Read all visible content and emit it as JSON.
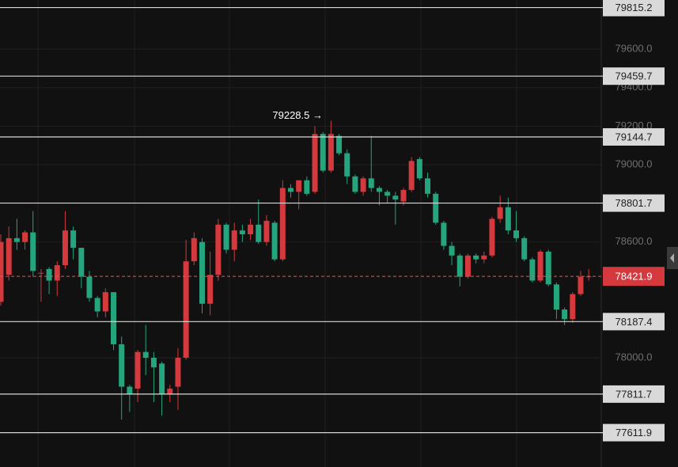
{
  "chart_data": {
    "type": "candlestick",
    "ylim": [
      77433.8,
      79854.4
    ],
    "yticks": [
      {
        "value": 78000,
        "label": "78000.0"
      },
      {
        "value": 78600,
        "label": "78600.0"
      },
      {
        "value": 79000,
        "label": "79000.0"
      },
      {
        "value": 79200,
        "label": "79200.0"
      },
      {
        "value": 79400,
        "label": "79400.0"
      },
      {
        "value": 79600,
        "label": "79600.0"
      }
    ],
    "grid": true,
    "up_color": "#d3393d",
    "down_color": "#24a57d",
    "levels": [
      79815.2,
      79459.7,
      79144.7,
      78801.7,
      78187.4,
      77811.7,
      77611.9
    ],
    "current_price": 78421.9,
    "annotation": {
      "value": 79228.5,
      "label": "79228.5 →"
    },
    "candles": [
      {
        "o": 78290,
        "h": 78640,
        "l": 78270,
        "c": 78600
      },
      {
        "o": 78430,
        "h": 78680,
        "l": 78400,
        "c": 78620
      },
      {
        "o": 78620,
        "h": 78720,
        "l": 78560,
        "c": 78600
      },
      {
        "o": 78600,
        "h": 78660,
        "l": 78560,
        "c": 78650
      },
      {
        "o": 78650,
        "h": 78760,
        "l": 78420,
        "c": 78450
      },
      {
        "o": 78440,
        "h": 78460,
        "l": 78290,
        "c": 78440
      },
      {
        "o": 78460,
        "h": 78470,
        "l": 78330,
        "c": 78400
      },
      {
        "o": 78400,
        "h": 78500,
        "l": 78320,
        "c": 78480
      },
      {
        "o": 78480,
        "h": 78760,
        "l": 78460,
        "c": 78660
      },
      {
        "o": 78660,
        "h": 78680,
        "l": 78510,
        "c": 78570
      },
      {
        "o": 78570,
        "h": 78570,
        "l": 78360,
        "c": 78420
      },
      {
        "o": 78420,
        "h": 78450,
        "l": 78290,
        "c": 78310
      },
      {
        "o": 78310,
        "h": 78320,
        "l": 78210,
        "c": 78240
      },
      {
        "o": 78240,
        "h": 78360,
        "l": 78210,
        "c": 78340
      },
      {
        "o": 78340,
        "h": 78340,
        "l": 78040,
        "c": 78070
      },
      {
        "o": 78070,
        "h": 78110,
        "l": 77680,
        "c": 77850
      },
      {
        "o": 77850,
        "h": 77860,
        "l": 77720,
        "c": 77810
      },
      {
        "o": 77840,
        "h": 78040,
        "l": 77770,
        "c": 78030
      },
      {
        "o": 78030,
        "h": 78170,
        "l": 77910,
        "c": 78000
      },
      {
        "o": 78000,
        "h": 78030,
        "l": 77770,
        "c": 77950
      },
      {
        "o": 77970,
        "h": 77980,
        "l": 77700,
        "c": 77810
      },
      {
        "o": 77810,
        "h": 77860,
        "l": 77770,
        "c": 77840
      },
      {
        "o": 77850,
        "h": 78050,
        "l": 77730,
        "c": 78000
      },
      {
        "o": 78000,
        "h": 78610,
        "l": 77990,
        "c": 78500
      },
      {
        "o": 78500,
        "h": 78650,
        "l": 78480,
        "c": 78620
      },
      {
        "o": 78600,
        "h": 78620,
        "l": 78230,
        "c": 78280
      },
      {
        "o": 78280,
        "h": 78550,
        "l": 78220,
        "c": 78430
      },
      {
        "o": 78430,
        "h": 78720,
        "l": 78400,
        "c": 78690
      },
      {
        "o": 78690,
        "h": 78700,
        "l": 78540,
        "c": 78560
      },
      {
        "o": 78560,
        "h": 78700,
        "l": 78500,
        "c": 78660
      },
      {
        "o": 78660,
        "h": 78690,
        "l": 78600,
        "c": 78640
      },
      {
        "o": 78640,
        "h": 78720,
        "l": 78610,
        "c": 78690
      },
      {
        "o": 78690,
        "h": 78820,
        "l": 78590,
        "c": 78600
      },
      {
        "o": 78600,
        "h": 78740,
        "l": 78580,
        "c": 78710
      },
      {
        "o": 78700,
        "h": 78710,
        "l": 78500,
        "c": 78510
      },
      {
        "o": 78510,
        "h": 78920,
        "l": 78500,
        "c": 78880
      },
      {
        "o": 78880,
        "h": 78900,
        "l": 78830,
        "c": 78860
      },
      {
        "o": 78860,
        "h": 78920,
        "l": 78770,
        "c": 78920
      },
      {
        "o": 78920,
        "h": 78940,
        "l": 78840,
        "c": 78850
      },
      {
        "o": 78860,
        "h": 79200,
        "l": 78850,
        "c": 79160
      },
      {
        "o": 79160,
        "h": 79170,
        "l": 78960,
        "c": 78970
      },
      {
        "o": 78970,
        "h": 79228.5,
        "l": 78960,
        "c": 79160
      },
      {
        "o": 79150,
        "h": 79160,
        "l": 79050,
        "c": 79060
      },
      {
        "o": 79060,
        "h": 79080,
        "l": 78900,
        "c": 78940
      },
      {
        "o": 78940,
        "h": 78950,
        "l": 78850,
        "c": 78860
      },
      {
        "o": 78860,
        "h": 78940,
        "l": 78840,
        "c": 78930
      },
      {
        "o": 78930,
        "h": 79150,
        "l": 78860,
        "c": 78880
      },
      {
        "o": 78880,
        "h": 78890,
        "l": 78790,
        "c": 78860
      },
      {
        "o": 78860,
        "h": 78870,
        "l": 78800,
        "c": 78840
      },
      {
        "o": 78840,
        "h": 78860,
        "l": 78690,
        "c": 78820
      },
      {
        "o": 78810,
        "h": 78880,
        "l": 78790,
        "c": 78870
      },
      {
        "o": 78870,
        "h": 79040,
        "l": 78860,
        "c": 79020
      },
      {
        "o": 79030,
        "h": 79040,
        "l": 78920,
        "c": 78930
      },
      {
        "o": 78930,
        "h": 78960,
        "l": 78830,
        "c": 78850
      },
      {
        "o": 78850,
        "h": 78860,
        "l": 78690,
        "c": 78700
      },
      {
        "o": 78700,
        "h": 78710,
        "l": 78560,
        "c": 78580
      },
      {
        "o": 78580,
        "h": 78600,
        "l": 78480,
        "c": 78530
      },
      {
        "o": 78530,
        "h": 78540,
        "l": 78370,
        "c": 78420
      },
      {
        "o": 78420,
        "h": 78540,
        "l": 78410,
        "c": 78530
      },
      {
        "o": 78530,
        "h": 78540,
        "l": 78490,
        "c": 78510
      },
      {
        "o": 78510,
        "h": 78550,
        "l": 78490,
        "c": 78530
      },
      {
        "o": 78530,
        "h": 78730,
        "l": 78520,
        "c": 78720
      },
      {
        "o": 78720,
        "h": 78840,
        "l": 78700,
        "c": 78780
      },
      {
        "o": 78780,
        "h": 78830,
        "l": 78640,
        "c": 78660
      },
      {
        "o": 78660,
        "h": 78760,
        "l": 78600,
        "c": 78620
      },
      {
        "o": 78620,
        "h": 78630,
        "l": 78500,
        "c": 78510
      },
      {
        "o": 78510,
        "h": 78520,
        "l": 78390,
        "c": 78400
      },
      {
        "o": 78400,
        "h": 78560,
        "l": 78390,
        "c": 78550
      },
      {
        "o": 78550,
        "h": 78560,
        "l": 78370,
        "c": 78380
      },
      {
        "o": 78380,
        "h": 78390,
        "l": 78200,
        "c": 78250
      },
      {
        "o": 78250,
        "h": 78260,
        "l": 78170,
        "c": 78200
      },
      {
        "o": 78200,
        "h": 78340,
        "l": 78180,
        "c": 78330
      },
      {
        "o": 78330,
        "h": 78450,
        "l": 78320,
        "c": 78420
      },
      {
        "o": 78420,
        "h": 78460,
        "l": 78400,
        "c": 78421.9
      }
    ]
  }
}
